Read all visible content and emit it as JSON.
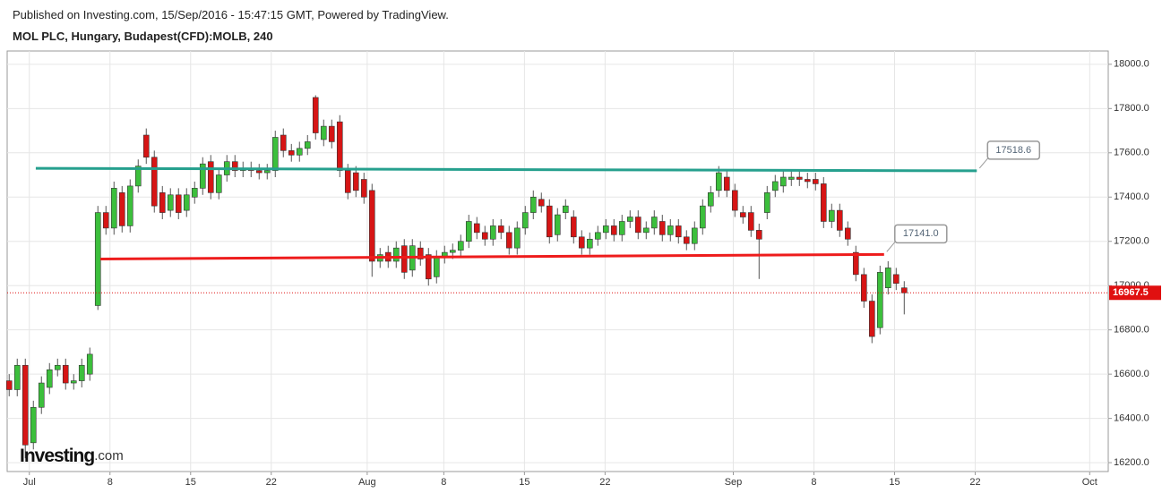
{
  "header": {
    "published": "Published on Investing.com, 15/Sep/2016 - 15:47:15 GMT, Powered by TradingView.",
    "symbol": "MOL PLC, Hungary, Budapest(CFD):MOLB, 240",
    "logo": "Investing",
    "logo_suffix": ".com"
  },
  "chart_data": {
    "type": "candlestick",
    "up_color": "#3cbf3c",
    "down_color": "#d61515",
    "open": [
      16570,
      16530,
      16640,
      16290,
      16450,
      16540,
      16620,
      16640,
      16560,
      16570,
      16600,
      16910,
      17330,
      17260,
      17420,
      17270,
      17450,
      17680,
      17580,
      17420,
      17340,
      17410,
      17340,
      17400,
      17440,
      17560,
      17420,
      17500,
      17560,
      17520,
      17530,
      17520,
      17510,
      17520,
      17680,
      17610,
      17590,
      17620,
      17850,
      17660,
      17720,
      17740,
      17520,
      17510,
      17480,
      17430,
      17110,
      17150,
      17110,
      17180,
      17070,
      17170,
      17140,
      17040,
      17130,
      17150,
      17160,
      17200,
      17280,
      17240,
      17210,
      17270,
      17240,
      17170,
      17260,
      17330,
      17390,
      17360,
      17230,
      17330,
      17310,
      17220,
      17170,
      17210,
      17240,
      17270,
      17230,
      17290,
      17310,
      17240,
      17260,
      17290,
      17230,
      17270,
      17220,
      17190,
      17260,
      17360,
      17430,
      17490,
      17430,
      17330,
      17330,
      17250,
      17330,
      17430,
      17450,
      17480,
      17490,
      17480,
      17480,
      17460,
      17290,
      17340,
      17260,
      17150,
      17050,
      16930,
      16810,
      16990,
      17050,
      16990
    ],
    "high": [
      16600,
      16670,
      16670,
      16480,
      16590,
      16650,
      16670,
      16670,
      16600,
      16670,
      16720,
      17360,
      17360,
      17470,
      17450,
      17480,
      17570,
      17710,
      17610,
      17450,
      17440,
      17440,
      17440,
      17470,
      17580,
      17590,
      17530,
      17590,
      17590,
      17560,
      17560,
      17550,
      17550,
      17700,
      17710,
      17640,
      17650,
      17680,
      17860,
      17750,
      17750,
      17770,
      17550,
      17540,
      17510,
      17460,
      17170,
      17180,
      17200,
      17210,
      17210,
      17200,
      17170,
      17160,
      17180,
      17190,
      17230,
      17320,
      17310,
      17270,
      17300,
      17300,
      17270,
      17290,
      17360,
      17430,
      17420,
      17390,
      17350,
      17390,
      17340,
      17250,
      17240,
      17270,
      17300,
      17300,
      17320,
      17340,
      17340,
      17290,
      17340,
      17320,
      17300,
      17300,
      17250,
      17290,
      17390,
      17450,
      17540,
      17520,
      17460,
      17360,
      17360,
      17280,
      17450,
      17500,
      17520,
      17520,
      17520,
      17510,
      17510,
      17490,
      17370,
      17370,
      17290,
      17180,
      17080,
      16960,
      17090,
      17110,
      17080,
      17020
    ],
    "low": [
      16500,
      16500,
      16220,
      16260,
      16420,
      16510,
      16590,
      16530,
      16530,
      16540,
      16570,
      16890,
      17230,
      17230,
      17240,
      17240,
      17420,
      17550,
      17330,
      17300,
      17310,
      17300,
      17310,
      17370,
      17410,
      17390,
      17390,
      17470,
      17490,
      17490,
      17490,
      17480,
      17480,
      17490,
      17580,
      17560,
      17560,
      17590,
      17660,
      17630,
      17620,
      17490,
      17390,
      17400,
      17370,
      17040,
      17080,
      17080,
      17080,
      17030,
      17040,
      17090,
      17000,
      17010,
      17100,
      17120,
      17130,
      17170,
      17210,
      17180,
      17180,
      17210,
      17140,
      17140,
      17230,
      17300,
      17330,
      17190,
      17200,
      17300,
      17190,
      17140,
      17140,
      17180,
      17210,
      17200,
      17200,
      17260,
      17210,
      17210,
      17230,
      17200,
      17200,
      17190,
      17160,
      17160,
      17230,
      17330,
      17400,
      17400,
      17310,
      17280,
      17220,
      17030,
      17300,
      17400,
      17420,
      17450,
      17450,
      17440,
      17430,
      17260,
      17260,
      17220,
      17180,
      17020,
      16900,
      16740,
      16780,
      16960,
      16980,
      16870
    ],
    "close": [
      16530,
      16640,
      16280,
      16450,
      16560,
      16620,
      16640,
      16560,
      16570,
      16640,
      16690,
      17330,
      17260,
      17440,
      17270,
      17450,
      17540,
      17580,
      17360,
      17330,
      17410,
      17330,
      17410,
      17440,
      17550,
      17420,
      17500,
      17560,
      17520,
      17530,
      17520,
      17510,
      17520,
      17670,
      17610,
      17590,
      17620,
      17650,
      17690,
      17720,
      17650,
      17520,
      17420,
      17430,
      17400,
      17110,
      17140,
      17110,
      17170,
      17060,
      17180,
      17120,
      17030,
      17130,
      17150,
      17160,
      17200,
      17290,
      17240,
      17210,
      17270,
      17240,
      17170,
      17260,
      17330,
      17400,
      17360,
      17220,
      17320,
      17360,
      17220,
      17170,
      17210,
      17240,
      17270,
      17230,
      17290,
      17310,
      17240,
      17260,
      17310,
      17230,
      17270,
      17220,
      17190,
      17260,
      17360,
      17420,
      17510,
      17430,
      17340,
      17310,
      17250,
      17210,
      17420,
      17470,
      17490,
      17490,
      17480,
      17470,
      17460,
      17290,
      17340,
      17250,
      17210,
      17050,
      16930,
      16770,
      17060,
      17080,
      17010,
      16967.5
    ],
    "xlim": [
      -0.25,
      136.3
    ],
    "xticks": [
      {
        "value": 2.5,
        "label": "Jul"
      },
      {
        "value": 12.5,
        "label": "8"
      },
      {
        "value": 22.5,
        "label": "15"
      },
      {
        "value": 32.5,
        "label": "22"
      },
      {
        "value": 44.4,
        "label": "Aug"
      },
      {
        "value": 53.9,
        "label": "8"
      },
      {
        "value": 63.9,
        "label": "15"
      },
      {
        "value": 73.9,
        "label": "22"
      },
      {
        "value": 89.8,
        "label": "Sep"
      },
      {
        "value": 99.8,
        "label": "8"
      },
      {
        "value": 109.8,
        "label": "15"
      },
      {
        "value": 119.8,
        "label": "22"
      },
      {
        "value": 134,
        "label": "Oct"
      }
    ],
    "ylim": [
      16160,
      18060
    ],
    "yticks": [
      {
        "value": 16200,
        "label": "16200.0"
      },
      {
        "value": 16400,
        "label": "16400.0"
      },
      {
        "value": 16600,
        "label": "16600.0"
      },
      {
        "value": 16800,
        "label": "16800.0"
      },
      {
        "value": 17000,
        "label": "17000.0"
      },
      {
        "value": 17200,
        "label": "17200.0"
      },
      {
        "value": 17400,
        "label": "17400.0"
      },
      {
        "value": 17600,
        "label": "17600.0"
      },
      {
        "value": 17800,
        "label": "17800.0"
      },
      {
        "value": 18000,
        "label": "18000.0"
      }
    ],
    "grid": true,
    "trendlines": [
      {
        "x": [
          3.3,
          120
        ],
        "values": [
          17530,
          17518.6
        ],
        "label": "17518.6",
        "color": "#26a08e"
      },
      {
        "x": [
          11.3,
          108.5
        ],
        "values": [
          17120,
          17141
        ],
        "label": "17141.0",
        "color": "#ee1c1c"
      }
    ],
    "last_price": {
      "value": 16967.5,
      "label": "16967.5",
      "color": "#e01010"
    }
  }
}
